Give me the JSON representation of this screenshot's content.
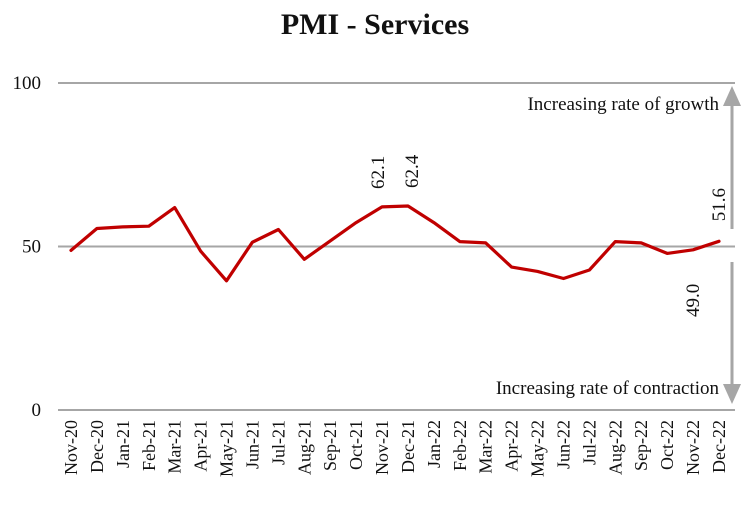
{
  "chart_data": {
    "type": "line",
    "title": "PMI - Services",
    "xlabel": "",
    "ylabel": "",
    "ylim": [
      0,
      100
    ],
    "yticks": [
      0,
      50,
      100
    ],
    "categories": [
      "Nov-20",
      "Dec-20",
      "Jan-21",
      "Feb-21",
      "Mar-21",
      "Apr-21",
      "May-21",
      "Jun-21",
      "Jul-21",
      "Aug-21",
      "Sep-21",
      "Oct-21",
      "Nov-21",
      "Dec-21",
      "Jan-22",
      "Feb-22",
      "Mar-22",
      "Apr-22",
      "May-22",
      "Jun-22",
      "Jul-22",
      "Aug-22",
      "Sep-22",
      "Oct-22",
      "Nov-22",
      "Dec-22"
    ],
    "series": [
      {
        "name": "PMI - Services",
        "color": "#c00000",
        "values": [
          48.8,
          55.5,
          56.0,
          56.2,
          61.9,
          48.6,
          39.5,
          51.3,
          55.2,
          46.1,
          51.7,
          57.3,
          62.1,
          62.4,
          57.3,
          51.5,
          51.1,
          43.7,
          42.4,
          40.2,
          42.8,
          51.5,
          51.1,
          47.9,
          49.0,
          51.6
        ]
      }
    ],
    "data_labels": [
      {
        "index": 12,
        "text": "62.1"
      },
      {
        "index": 13,
        "text": "62.4"
      },
      {
        "index": 24,
        "text": "49.0"
      },
      {
        "index": 25,
        "text": "51.6"
      }
    ],
    "annotations": {
      "growth": "Increasing rate of growth",
      "contraction": "Increasing rate of contraction"
    },
    "colors": {
      "line": "#c00000",
      "grid": "#a6a6a6",
      "arrow": "#a6a6a6"
    }
  }
}
